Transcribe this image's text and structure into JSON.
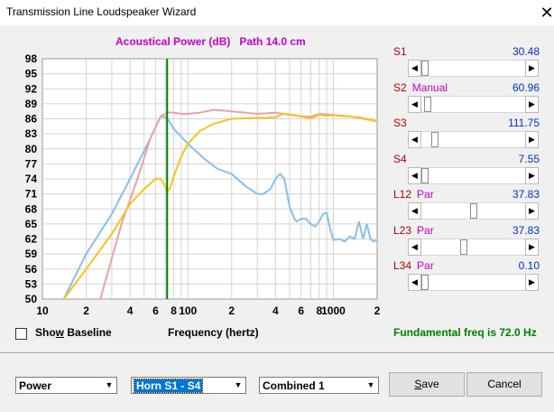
{
  "window": {
    "title": "Transmission Line Loudspeaker Wizard",
    "close_glyph": "✕"
  },
  "chart_data": {
    "type": "line",
    "title": "Acoustical Power (dB)   Path 14.0 cm",
    "xlabel": "Frequency (hertz)",
    "ylabel": "",
    "x_scale": "log",
    "xlim": [
      10,
      2000
    ],
    "ylim": [
      50,
      98
    ],
    "x_tick_values": [
      10,
      20,
      40,
      60,
      80,
      100,
      200,
      400,
      600,
      800,
      1000,
      2000
    ],
    "x_tick_labels": [
      "10",
      "2",
      "4",
      "6",
      "8",
      "100",
      "2",
      "4",
      "6",
      "8",
      "1000",
      "2"
    ],
    "y_tick_labels": [
      "98",
      "95",
      "92",
      "89",
      "86",
      "83",
      "80",
      "77",
      "74",
      "71",
      "68",
      "65",
      "62",
      "59",
      "56",
      "53",
      "50"
    ],
    "grid": true,
    "marker_frequency": 72,
    "marker_color": "#008000",
    "series": [
      {
        "color": "#88c0ec",
        "x": [
          14,
          20,
          30,
          40,
          55,
          65,
          72,
          80,
          100,
          130,
          160,
          200,
          250,
          300,
          330,
          370,
          400,
          430,
          460,
          500,
          540,
          560,
          600,
          650,
          700,
          750,
          800,
          850,
          900,
          950,
          1000,
          1100,
          1200,
          1300,
          1400,
          1500,
          1600,
          1700,
          1800,
          1900,
          2000
        ],
        "y": [
          50,
          59,
          67,
          74,
          82,
          86.5,
          86.2,
          84,
          81,
          78,
          76,
          75,
          72.5,
          71,
          71,
          72,
          74,
          75,
          74,
          68.5,
          66,
          65.5,
          66,
          66,
          65,
          64.5,
          65.5,
          67,
          67.2,
          64,
          61.8,
          62,
          61.5,
          62.5,
          62,
          65.5,
          62,
          65,
          62,
          61.5,
          61.8
        ]
      },
      {
        "color": "#f0a0a0",
        "x": [
          25,
          35,
          45,
          55,
          65,
          70,
          75,
          80,
          90,
          100,
          120,
          150,
          200,
          250,
          300,
          400,
          500,
          600,
          700,
          800,
          1000,
          1300,
          1600,
          2000
        ],
        "y": [
          50,
          65,
          74,
          82,
          86.5,
          87,
          87.3,
          87.2,
          87,
          87,
          87.2,
          87.8,
          87.5,
          87.2,
          87.0,
          87.2,
          86.8,
          86.5,
          86.4,
          87,
          86.8,
          86.5,
          86,
          85.5
        ]
      },
      {
        "color": "#f5c518",
        "x": [
          14,
          20,
          30,
          40,
          50,
          60,
          65,
          70,
          72,
          75,
          80,
          90,
          100,
          120,
          150,
          200,
          250,
          300,
          350,
          400,
          450,
          500,
          600,
          700,
          800,
          900,
          1000,
          1500,
          2000
        ],
        "y": [
          50,
          56,
          63,
          69,
          72,
          74,
          74,
          72.5,
          71.5,
          72,
          74.5,
          78.5,
          81,
          83.5,
          85,
          86,
          86.1,
          86.2,
          86.2,
          86.3,
          87,
          86.9,
          86.5,
          86,
          86.8,
          86.6,
          86.7,
          86.3,
          85.5
        ]
      }
    ]
  },
  "sliders": [
    {
      "label": "S1",
      "sub": "",
      "value": "30.48",
      "level": 0.0
    },
    {
      "label": "S2",
      "sub": "Manual",
      "value": "60.96",
      "level": 0.03
    },
    {
      "label": "S3",
      "sub": "",
      "value": "111.75",
      "level": 0.1
    },
    {
      "label": "S4",
      "sub": "",
      "value": "7.55",
      "level": 0.0
    },
    {
      "label": "L12",
      "sub": "Par",
      "value": "37.83",
      "level": 0.5
    },
    {
      "label": "L23",
      "sub": "Par",
      "value": "37.83",
      "level": 0.4
    },
    {
      "label": "L34",
      "sub": "Par",
      "value": "0.10",
      "level": 0.0
    }
  ],
  "show_baseline": {
    "label_pre": "Sho",
    "label_u": "w",
    "label_post": " Baseline",
    "checked": false
  },
  "fundamental_label": "Fundamental freq is 72.0 Hz",
  "dropdowns": {
    "mode": "Power",
    "source": "Horn S1 - S4",
    "combine": "Combined 1",
    "arrow_glyph": "▼"
  },
  "buttons": {
    "save_u": "S",
    "save_rest": "ave",
    "cancel": "Cancel"
  },
  "arrows": {
    "left": "◀",
    "right": "▶"
  },
  "colors": {
    "plot_bg": "#ffffff",
    "grid": "#d4d4d4",
    "axis_text": "#000000",
    "label_red": "#c00000",
    "value_blue": "#0033cc",
    "title_magenta": "#cc00cc",
    "fund_green": "#008000"
  }
}
